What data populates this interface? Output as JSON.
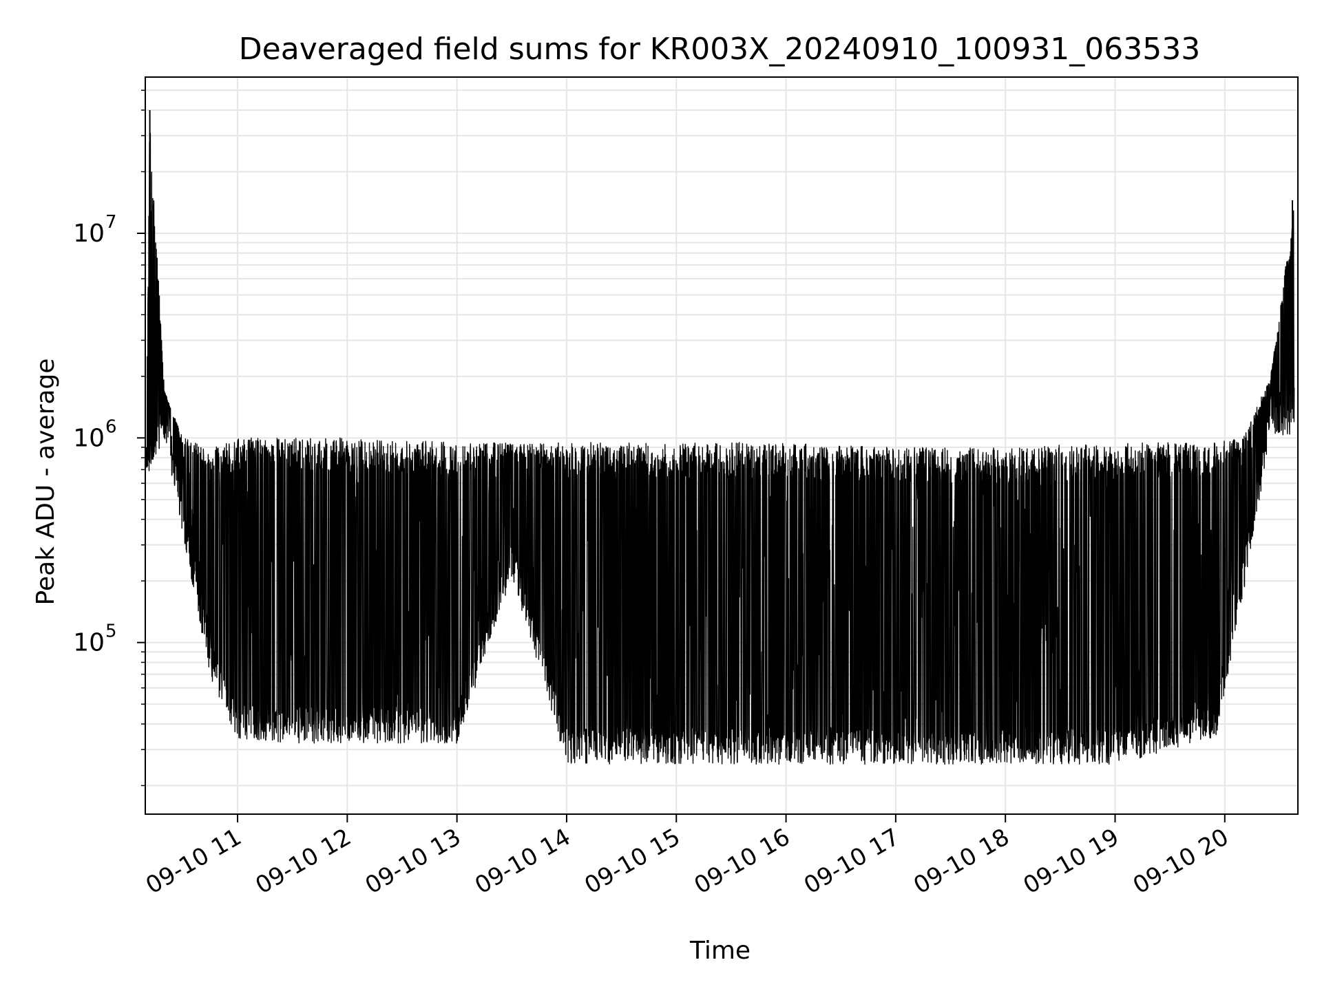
{
  "chart_data": {
    "type": "line",
    "title": "Deaveraged field sums for KR003X_20240910_100931_063533",
    "xlabel": "Time",
    "ylabel": "Peak ADU - average",
    "yscale": "log",
    "grid": true,
    "xlim": [
      "2024-09-10T10:09:31",
      "2024-09-10T20:40:00"
    ],
    "ylim": [
      14500,
      58000000
    ],
    "xticks": [
      {
        "value": "2024-09-10T11:00",
        "label": "09-10 11"
      },
      {
        "value": "2024-09-10T12:00",
        "label": "09-10 12"
      },
      {
        "value": "2024-09-10T13:00",
        "label": "09-10 13"
      },
      {
        "value": "2024-09-10T14:00",
        "label": "09-10 14"
      },
      {
        "value": "2024-09-10T15:00",
        "label": "09-10 15"
      },
      {
        "value": "2024-09-10T16:00",
        "label": "09-10 16"
      },
      {
        "value": "2024-09-10T17:00",
        "label": "09-10 17"
      },
      {
        "value": "2024-09-10T18:00",
        "label": "09-10 18"
      },
      {
        "value": "2024-09-10T19:00",
        "label": "09-10 19"
      },
      {
        "value": "2024-09-10T20:00",
        "label": "09-10 20"
      }
    ],
    "yticks": [
      {
        "value": 100000,
        "base": "10",
        "exp": "5"
      },
      {
        "value": 1000000,
        "base": "10",
        "exp": "6"
      },
      {
        "value": 10000000,
        "base": "10",
        "exp": "7"
      }
    ],
    "series": [
      {
        "color": "#000000",
        "envelope_x": [
          "2024-09-10T10:10",
          "2024-09-10T10:12",
          "2024-09-10T10:20",
          "2024-09-10T10:30",
          "2024-09-10T10:45",
          "2024-09-10T11:00",
          "2024-09-10T11:30",
          "2024-09-10T12:00",
          "2024-09-10T13:00",
          "2024-09-10T13:30",
          "2024-09-10T14:00",
          "2024-09-10T15:00",
          "2024-09-10T16:00",
          "2024-09-10T17:00",
          "2024-09-10T18:00",
          "2024-09-10T19:00",
          "2024-09-10T19:55",
          "2024-09-10T20:10",
          "2024-09-10T20:25",
          "2024-09-10T20:38"
        ],
        "envelope_high": [
          900000,
          40000000,
          1700000,
          1000000,
          900000,
          1000000,
          1000000,
          1000000,
          950000,
          950000,
          950000,
          950000,
          950000,
          900000,
          900000,
          950000,
          950000,
          1000000,
          2000000,
          14000000
        ],
        "envelope_low": [
          650000,
          800000,
          1200000,
          400000,
          80000,
          40000,
          38000,
          38000,
          38000,
          250000,
          30000,
          30000,
          30000,
          30000,
          30000,
          30000,
          40000,
          200000,
          1200000,
          1200000
        ],
        "spikes": [
          {
            "x": "2024-09-10T10:12",
            "y": 40000000
          },
          {
            "x": "2024-09-10T20:37",
            "y": 14500000
          }
        ]
      }
    ]
  }
}
